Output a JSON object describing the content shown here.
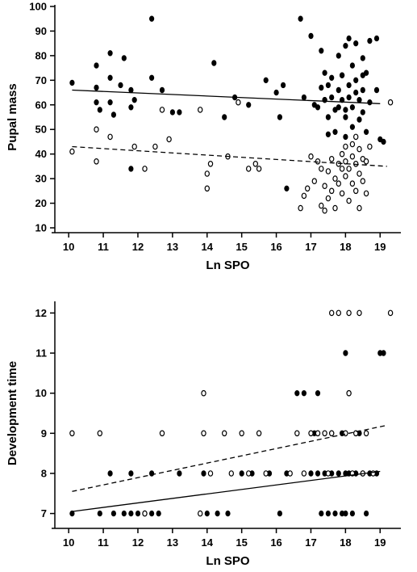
{
  "chart_data": [
    {
      "type": "scatter",
      "xlabel": "Ln SPO",
      "ylabel": "Pupal mass",
      "xlim": [
        9.6,
        19.6
      ],
      "ylim": [
        10,
        100
      ],
      "xticks": [
        10,
        11,
        12,
        13,
        14,
        15,
        16,
        17,
        18,
        19
      ],
      "yticks": [
        10,
        20,
        30,
        40,
        50,
        60,
        70,
        80,
        90,
        100
      ],
      "series": [
        {
          "marker": "filled",
          "trend": {
            "style": "solid",
            "x": [
              10.1,
              19.0
            ],
            "y": [
              66,
              60.5
            ]
          },
          "points": [
            [
              10.1,
              69
            ],
            [
              10.8,
              76
            ],
            [
              10.8,
              67
            ],
            [
              10.8,
              61
            ],
            [
              10.9,
              58
            ],
            [
              11.2,
              81
            ],
            [
              11.2,
              71
            ],
            [
              11.2,
              61
            ],
            [
              11.3,
              56
            ],
            [
              11.5,
              68
            ],
            [
              11.6,
              79
            ],
            [
              11.8,
              66
            ],
            [
              11.8,
              59
            ],
            [
              11.9,
              62
            ],
            [
              11.8,
              34
            ],
            [
              12.4,
              95
            ],
            [
              12.4,
              71
            ],
            [
              12.7,
              66
            ],
            [
              13.0,
              57
            ],
            [
              13.2,
              57
            ],
            [
              14.2,
              77
            ],
            [
              14.5,
              55
            ],
            [
              14.8,
              63
            ],
            [
              15.2,
              60
            ],
            [
              15.7,
              70
            ],
            [
              16.0,
              65
            ],
            [
              16.1,
              55
            ],
            [
              16.2,
              68
            ],
            [
              16.3,
              26
            ],
            [
              16.7,
              95
            ],
            [
              16.8,
              63
            ],
            [
              17.0,
              88
            ],
            [
              17.1,
              60
            ],
            [
              17.2,
              59
            ],
            [
              17.3,
              82
            ],
            [
              17.3,
              67
            ],
            [
              17.4,
              73
            ],
            [
              17.4,
              62
            ],
            [
              17.5,
              55
            ],
            [
              17.5,
              68
            ],
            [
              17.5,
              48
            ],
            [
              17.6,
              63
            ],
            [
              17.6,
              71
            ],
            [
              17.7,
              58
            ],
            [
              17.7,
              49
            ],
            [
              17.8,
              66
            ],
            [
              17.8,
              80
            ],
            [
              17.8,
              59
            ],
            [
              17.9,
              62
            ],
            [
              17.9,
              72
            ],
            [
              18.0,
              84
            ],
            [
              18.0,
              55
            ],
            [
              18.0,
              47
            ],
            [
              18.1,
              87
            ],
            [
              18.1,
              68
            ],
            [
              18.1,
              63
            ],
            [
              18.2,
              76
            ],
            [
              18.2,
              59
            ],
            [
              18.2,
              51
            ],
            [
              18.3,
              85
            ],
            [
              18.3,
              70
            ],
            [
              18.3,
              65
            ],
            [
              18.4,
              62
            ],
            [
              18.4,
              54
            ],
            [
              18.5,
              72
            ],
            [
              18.5,
              66
            ],
            [
              18.5,
              57
            ],
            [
              18.6,
              73
            ],
            [
              18.6,
              49
            ],
            [
              18.7,
              86
            ],
            [
              18.7,
              61
            ],
            [
              18.9,
              87
            ],
            [
              18.9,
              66
            ],
            [
              19.0,
              46
            ],
            [
              19.1,
              45
            ],
            [
              17.4,
              62
            ],
            [
              17.9,
              72
            ],
            [
              18.5,
              79
            ],
            [
              18.0,
              58
            ]
          ]
        },
        {
          "marker": "hollow",
          "trend": {
            "style": "dashed",
            "x": [
              10.1,
              19.2
            ],
            "y": [
              43,
              35
            ]
          },
          "points": [
            [
              10.1,
              41
            ],
            [
              10.8,
              50
            ],
            [
              10.8,
              37
            ],
            [
              11.2,
              47
            ],
            [
              11.9,
              43
            ],
            [
              12.2,
              34
            ],
            [
              12.5,
              43
            ],
            [
              12.7,
              58
            ],
            [
              12.9,
              46
            ],
            [
              13.8,
              58
            ],
            [
              14.0,
              32
            ],
            [
              14.0,
              26
            ],
            [
              14.1,
              36
            ],
            [
              14.6,
              39
            ],
            [
              14.9,
              61
            ],
            [
              15.2,
              34
            ],
            [
              15.4,
              36
            ],
            [
              15.5,
              34
            ],
            [
              16.7,
              18
            ],
            [
              16.8,
              23
            ],
            [
              16.9,
              26
            ],
            [
              17.0,
              39
            ],
            [
              17.1,
              29
            ],
            [
              17.2,
              37
            ],
            [
              17.3,
              19
            ],
            [
              17.3,
              34
            ],
            [
              17.4,
              27
            ],
            [
              17.4,
              17
            ],
            [
              17.5,
              33
            ],
            [
              17.5,
              22
            ],
            [
              17.6,
              38
            ],
            [
              17.6,
              25
            ],
            [
              17.7,
              30
            ],
            [
              17.7,
              18
            ],
            [
              17.8,
              36
            ],
            [
              17.8,
              28
            ],
            [
              17.9,
              40
            ],
            [
              17.9,
              34
            ],
            [
              17.9,
              24
            ],
            [
              18.0,
              43
            ],
            [
              18.0,
              37
            ],
            [
              18.0,
              31
            ],
            [
              18.1,
              21
            ],
            [
              18.1,
              34
            ],
            [
              18.2,
              44
            ],
            [
              18.2,
              39
            ],
            [
              18.2,
              28
            ],
            [
              18.3,
              47
            ],
            [
              18.3,
              36
            ],
            [
              18.3,
              25
            ],
            [
              18.4,
              42
            ],
            [
              18.4,
              32
            ],
            [
              18.4,
              18
            ],
            [
              18.5,
              38
            ],
            [
              18.5,
              29
            ],
            [
              18.6,
              37
            ],
            [
              18.6,
              24
            ],
            [
              18.7,
              43
            ],
            [
              19.3,
              61
            ]
          ]
        }
      ]
    },
    {
      "type": "scatter",
      "xlabel": "Ln SPO",
      "ylabel": "Development time",
      "xlim": [
        9.6,
        19.6
      ],
      "ylim": [
        6.75,
        12.25
      ],
      "xticks": [
        10,
        11,
        12,
        13,
        14,
        15,
        16,
        17,
        18,
        19
      ],
      "yticks": [
        7,
        8,
        9,
        10,
        11,
        12
      ],
      "series": [
        {
          "marker": "filled",
          "trend": {
            "style": "solid",
            "x": [
              10.1,
              19.0
            ],
            "y": [
              7.05,
              8.05
            ]
          },
          "points": [
            [
              10.1,
              7
            ],
            [
              10.9,
              7
            ],
            [
              11.2,
              8
            ],
            [
              11.3,
              7
            ],
            [
              11.6,
              7
            ],
            [
              11.8,
              8
            ],
            [
              11.8,
              7
            ],
            [
              12.0,
              7
            ],
            [
              12.2,
              7
            ],
            [
              12.4,
              8
            ],
            [
              12.4,
              7
            ],
            [
              12.6,
              7
            ],
            [
              13.2,
              8
            ],
            [
              13.9,
              8
            ],
            [
              14.0,
              7
            ],
            [
              14.3,
              7
            ],
            [
              14.6,
              7
            ],
            [
              15.0,
              8
            ],
            [
              15.3,
              8
            ],
            [
              15.8,
              8
            ],
            [
              16.1,
              7
            ],
            [
              16.3,
              8
            ],
            [
              16.6,
              10
            ],
            [
              16.8,
              10
            ],
            [
              17.0,
              8
            ],
            [
              17.1,
              9
            ],
            [
              17.2,
              10
            ],
            [
              17.2,
              8
            ],
            [
              17.3,
              7
            ],
            [
              17.4,
              8
            ],
            [
              17.5,
              7
            ],
            [
              17.6,
              9
            ],
            [
              17.6,
              8
            ],
            [
              17.7,
              7
            ],
            [
              17.8,
              8
            ],
            [
              17.9,
              9
            ],
            [
              17.9,
              7
            ],
            [
              18.0,
              11
            ],
            [
              18.0,
              8
            ],
            [
              18.0,
              7
            ],
            [
              18.1,
              10
            ],
            [
              18.1,
              8
            ],
            [
              18.2,
              7
            ],
            [
              18.3,
              8
            ],
            [
              18.4,
              9
            ],
            [
              18.5,
              8
            ],
            [
              18.6,
              7
            ],
            [
              18.7,
              8
            ],
            [
              18.9,
              8
            ],
            [
              19.0,
              11
            ],
            [
              19.1,
              11
            ]
          ]
        },
        {
          "marker": "hollow",
          "trend": {
            "style": "dashed",
            "x": [
              10.1,
              19.2
            ],
            "y": [
              7.55,
              9.2
            ]
          },
          "points": [
            [
              10.1,
              9
            ],
            [
              10.9,
              9
            ],
            [
              12.2,
              7
            ],
            [
              12.7,
              9
            ],
            [
              13.8,
              7
            ],
            [
              13.9,
              10
            ],
            [
              13.9,
              9
            ],
            [
              14.1,
              8
            ],
            [
              14.5,
              9
            ],
            [
              14.7,
              8
            ],
            [
              15.0,
              9
            ],
            [
              15.2,
              8
            ],
            [
              15.5,
              9
            ],
            [
              15.7,
              8
            ],
            [
              16.4,
              8
            ],
            [
              16.6,
              9
            ],
            [
              16.8,
              8
            ],
            [
              17.0,
              9
            ],
            [
              17.2,
              9
            ],
            [
              17.4,
              9
            ],
            [
              17.5,
              8
            ],
            [
              17.6,
              9
            ],
            [
              17.6,
              12
            ],
            [
              17.8,
              12
            ],
            [
              18.0,
              9
            ],
            [
              18.1,
              10
            ],
            [
              18.1,
              12
            ],
            [
              18.2,
              8
            ],
            [
              18.3,
              9
            ],
            [
              18.4,
              12
            ],
            [
              18.5,
              8
            ],
            [
              18.6,
              9
            ],
            [
              18.8,
              8
            ],
            [
              19.3,
              12
            ]
          ]
        }
      ]
    }
  ]
}
